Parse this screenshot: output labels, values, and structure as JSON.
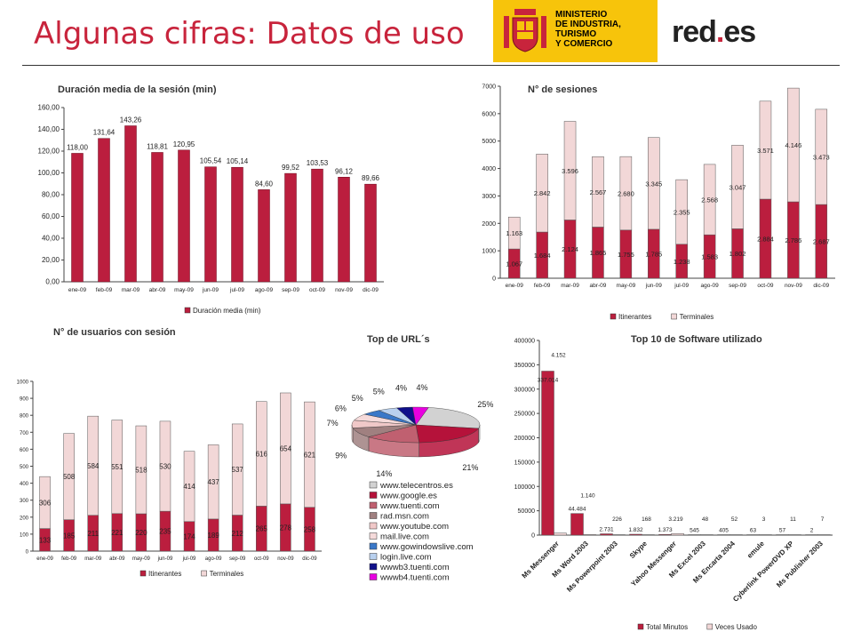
{
  "header": {
    "title": "Algunas cifras: Datos de uso",
    "ministry_lines": [
      "MINISTERIO",
      "DE INDUSTRIA, TURISMO",
      "Y COMERCIO"
    ],
    "brand_main": "red",
    "brand_dot": ".",
    "brand_suffix": "es",
    "colors": {
      "accent": "#c8243c",
      "ministry_bg": "#f7c40b"
    }
  },
  "colors": {
    "dark_red": "#bb1e3e",
    "light_pink": "#f2d7d7"
  },
  "chart_data": [
    {
      "type": "bar",
      "title": "Duración media de la sesión (min)",
      "categories": [
        "ene-09",
        "feb-09",
        "mar-09",
        "abr-09",
        "may-09",
        "jun-09",
        "jul-09",
        "ago-09",
        "sep-09",
        "oct-09",
        "nov-09",
        "dic-09"
      ],
      "series": [
        {
          "name": "Duración media (min)",
          "values": [
            118.0,
            131.64,
            143.26,
            118.81,
            120.95,
            105.54,
            105.14,
            84.6,
            99.52,
            103.53,
            96.12,
            89.66
          ]
        }
      ],
      "labels": [
        "118,00",
        "131,64",
        "143,26",
        "118,81",
        "120,95",
        "105,54",
        "105,14",
        "84,60",
        "99,52",
        "103,53",
        "96,12",
        "89,66"
      ],
      "yticks": [
        "0,00",
        "20,00",
        "40,00",
        "60,00",
        "80,00",
        "100,00",
        "120,00",
        "140,00",
        "160,00"
      ],
      "ylim": [
        0,
        160
      ],
      "grid": false,
      "legend": "bottom"
    },
    {
      "type": "bar",
      "stacked": true,
      "title": "N° de sesiones",
      "categories": [
        "ene-09",
        "feb-09",
        "mar-09",
        "abr-09",
        "may-09",
        "jun-09",
        "jul-09",
        "ago-09",
        "sep-09",
        "oct-09",
        "nov-09",
        "dic-09"
      ],
      "series": [
        {
          "name": "Itinerantes",
          "values": [
            1067,
            1684,
            2124,
            1865,
            1755,
            1785,
            1238,
            1583,
            1802,
            2884,
            2786,
            2687
          ],
          "labels": [
            "1.067",
            "1.684",
            "2.124",
            "1.865",
            "1.755",
            "1.785",
            "1.238",
            "1.583",
            "1.802",
            "2.884",
            "2.786",
            "2.687"
          ]
        },
        {
          "name": "Terminales",
          "values": [
            1163,
            2842,
            3596,
            2567,
            2680,
            3345,
            2355,
            2568,
            3047,
            3571,
            4146,
            3473
          ],
          "labels": [
            "1.163",
            "2.842",
            "3.596",
            "2.567",
            "2.680",
            "3.345",
            "2.355",
            "2.568",
            "3.047",
            "3.571",
            "4.146",
            "3.473"
          ]
        }
      ],
      "yticks": [
        "0",
        "1000",
        "2000",
        "3000",
        "4000",
        "5000",
        "6000",
        "7000"
      ],
      "ylim": [
        0,
        7000
      ],
      "grid": false,
      "legend": "bottom"
    },
    {
      "type": "bar",
      "stacked": true,
      "title": "N° de usuarios con sesión",
      "categories": [
        "ene-09",
        "feb-09",
        "mar-09",
        "abr-09",
        "may-09",
        "jun-09",
        "jul-09",
        "ago-09",
        "sep-09",
        "oct-09",
        "nov-09",
        "dic-09"
      ],
      "series": [
        {
          "name": "Itinerantes",
          "values": [
            133,
            185,
            211,
            221,
            220,
            235,
            174,
            189,
            212,
            265,
            278,
            258
          ],
          "labels": [
            "133",
            "185",
            "211",
            "221",
            "220",
            "235",
            "174",
            "189",
            "212",
            "265",
            "278",
            "258"
          ]
        },
        {
          "name": "Terminales",
          "values": [
            306,
            508,
            584,
            551,
            518,
            530,
            414,
            437,
            537,
            616,
            654,
            621
          ],
          "labels": [
            "306",
            "508",
            "584",
            "551",
            "518",
            "530",
            "414",
            "437",
            "537",
            "616",
            "654",
            "621"
          ]
        }
      ],
      "yticks": [
        "0",
        "100",
        "200",
        "300",
        "400",
        "500",
        "600",
        "700",
        "800",
        "900",
        "1000"
      ],
      "ylim": [
        0,
        1000
      ],
      "grid": false,
      "legend": "bottom"
    },
    {
      "type": "pie",
      "title": "Top de URL´s",
      "categories": [
        "www.telecentros.es",
        "www.google.es",
        "www.tuenti.com",
        "rad.msn.com",
        "www.youtube.com",
        "mail.live.com",
        "www.gowindowslive.com",
        "login.live.com",
        "wwwb3.tuenti.com",
        "wwwb4.tuenti.com"
      ],
      "values": [
        25,
        21,
        14,
        9,
        7,
        6,
        5,
        5,
        4,
        4
      ],
      "labels": [
        "25%",
        "21%",
        "14%",
        "9%",
        "7%",
        "6%",
        "5%",
        "5%",
        "4%",
        "4%"
      ],
      "colors": [
        "#d2d2d2",
        "#b5123a",
        "#c06070",
        "#a08080",
        "#f0c8c8",
        "#f5dada",
        "#3a78c8",
        "#b8d0ee",
        "#10108a",
        "#e800e0"
      ],
      "legend": "bottom"
    },
    {
      "type": "bar",
      "title": "Top 10 de Software utilizado",
      "categories": [
        "Ms Messenger",
        "Ms Word 2003",
        "Ms Powerpoint 2003",
        "Skype",
        "Yahoo Messenger",
        "Ms Excel 2003",
        "Ms Encarta 2004",
        "emule",
        "Cyberlink PowerDVD XP",
        "Ms Publisher 2003"
      ],
      "series": [
        {
          "name": "Total Minutos",
          "values": [
            337014,
            44484,
            2731,
            1832,
            1373,
            545,
            405,
            63,
            57,
            2
          ],
          "labels": [
            "337.014",
            "44.484",
            "2.731",
            "1.832",
            "1.373",
            "545",
            "405",
            "63",
            "57",
            "2"
          ]
        },
        {
          "name": "Veces Usado",
          "values": [
            4152,
            1140,
            226,
            168,
            3219,
            48,
            52,
            3,
            11,
            7
          ],
          "labels": [
            "4.152",
            "1.140",
            "226",
            "168",
            "3.219",
            "48",
            "52",
            "3",
            "11",
            "7"
          ]
        }
      ],
      "yticks": [
        "0",
        "50000",
        "100000",
        "150000",
        "200000",
        "250000",
        "300000",
        "350000",
        "400000"
      ],
      "ylim": [
        0,
        400000
      ],
      "grid": false,
      "legend": "bottom"
    }
  ]
}
